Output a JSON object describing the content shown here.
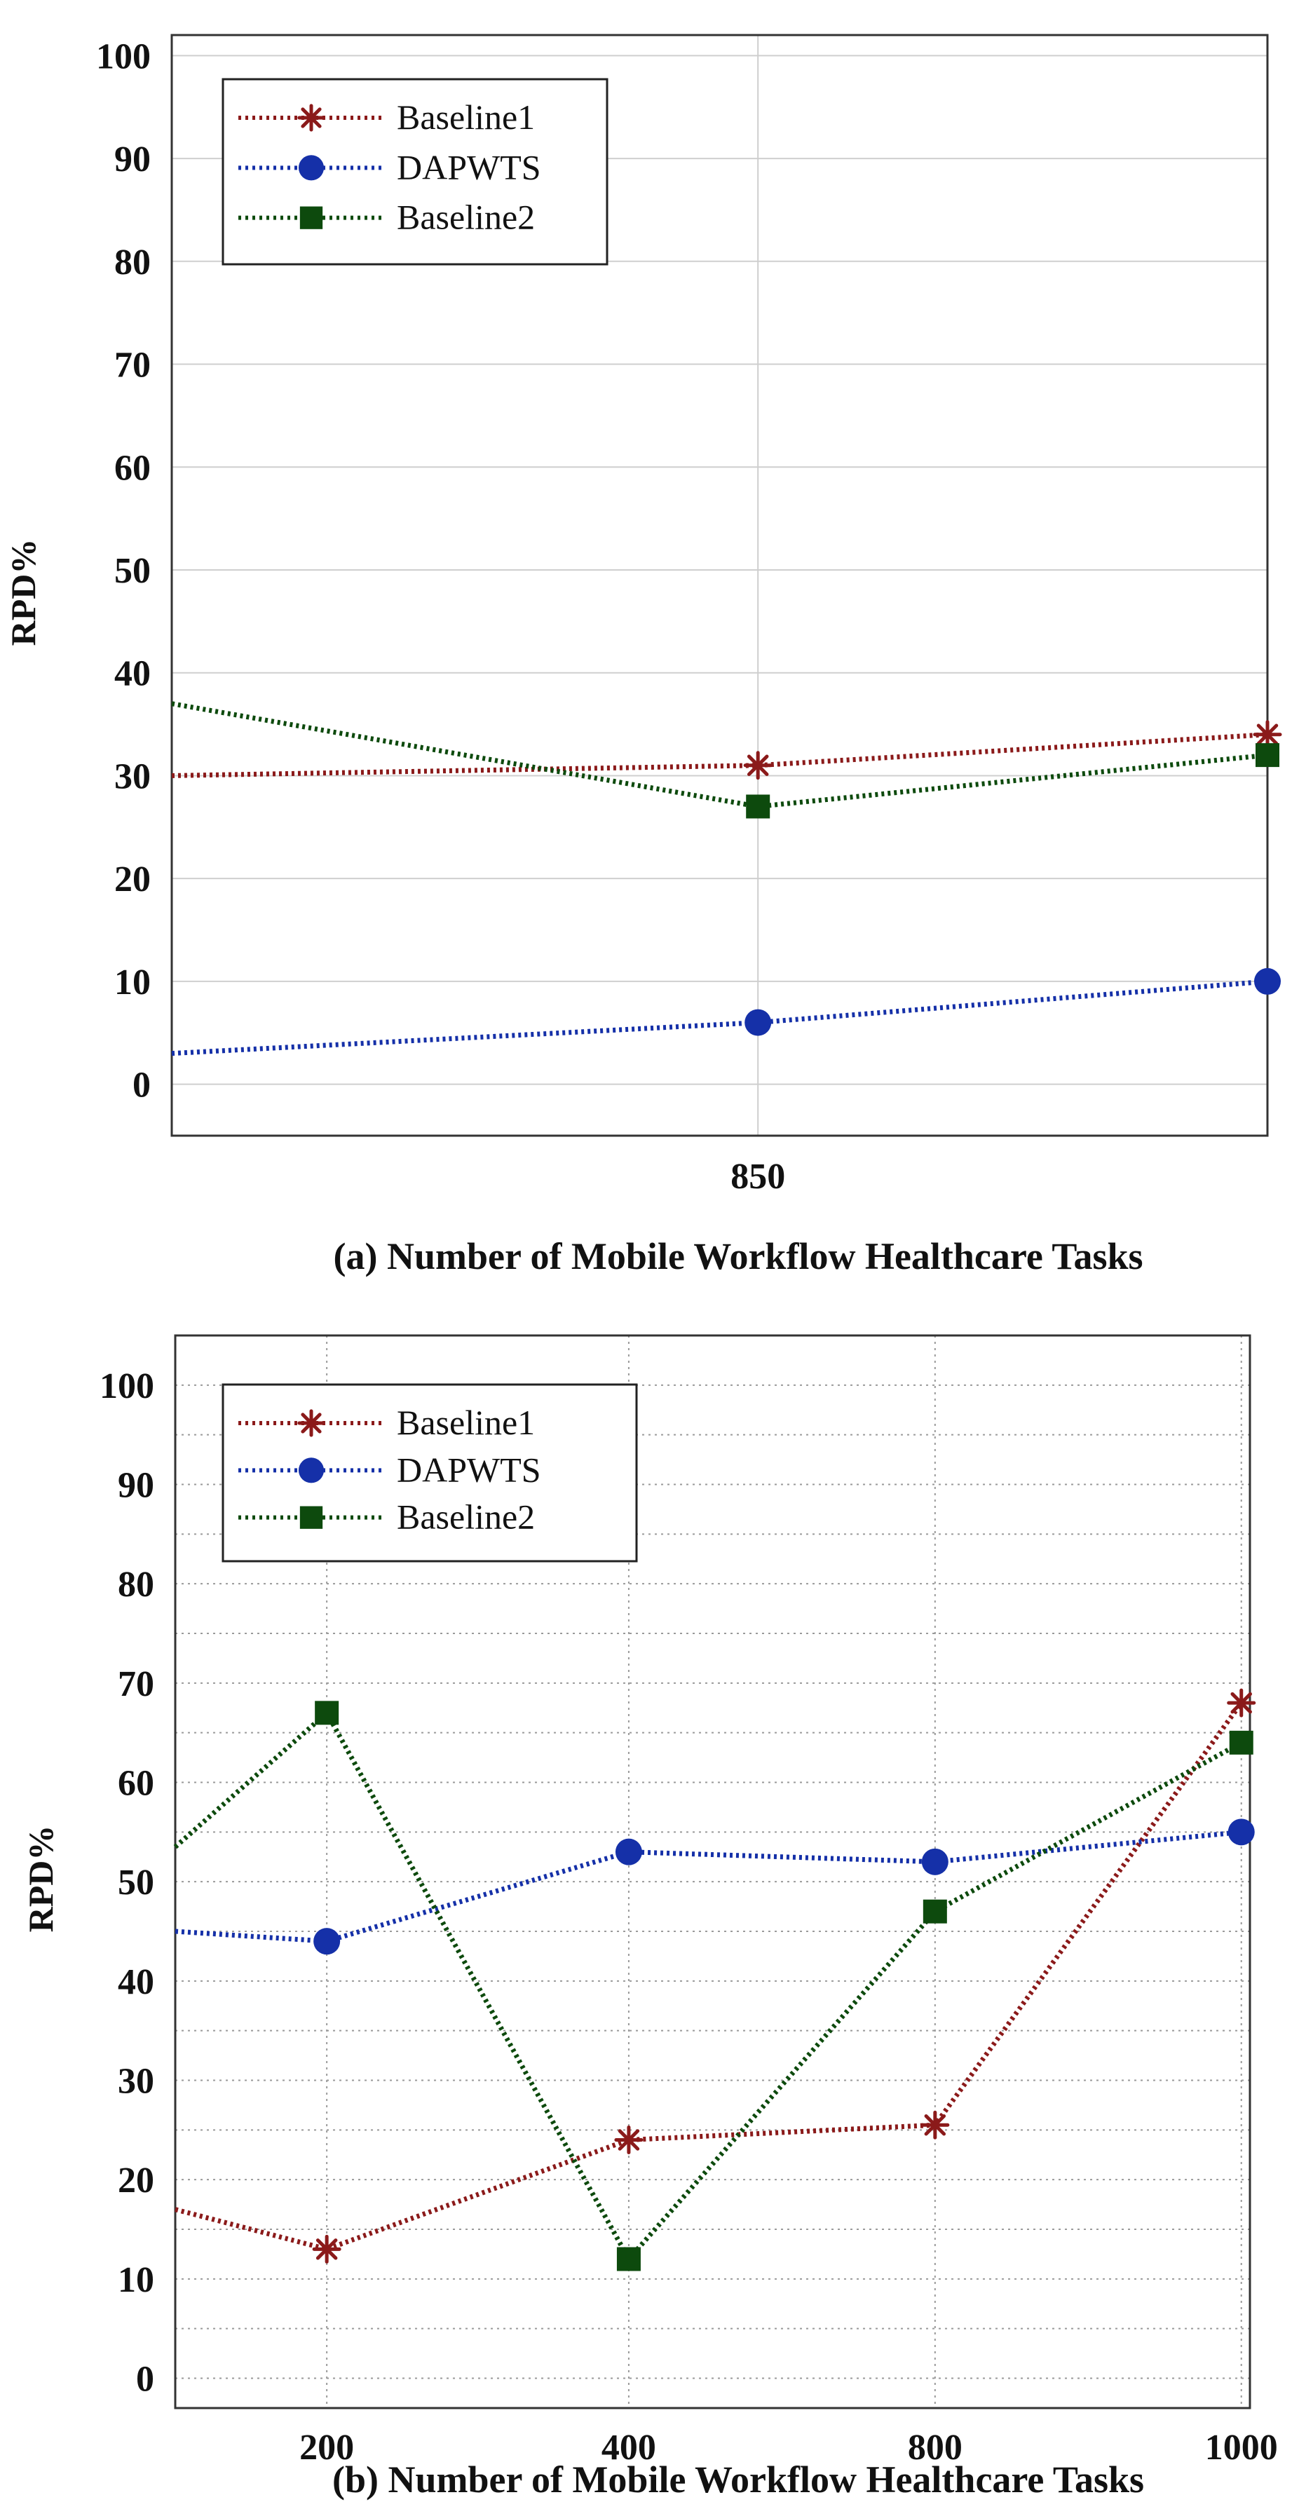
{
  "colors": {
    "baseline1": "#8b1a1a",
    "dapwts": "#1530a8",
    "baseline2": "#0d4a0d"
  },
  "chart_data": [
    {
      "type": "line",
      "caption": "(a) Number of Mobile Workflow Healthcare Tasks",
      "ylabel": "RPD%",
      "ylim": [
        -5,
        102
      ],
      "yticks": [
        "0",
        "10",
        "20",
        "30",
        "40",
        "50",
        "60",
        "70",
        "80",
        "90",
        "100"
      ],
      "xlim": [
        0,
        1
      ],
      "xticks": [
        {
          "x": 0.535,
          "label": "850"
        }
      ],
      "legend": [
        "Baseline1",
        "DAPWTS",
        "Baseline2"
      ],
      "series": [
        {
          "name": "Baseline1",
          "x": [
            0,
            0.535,
            1
          ],
          "values": [
            30,
            31,
            34
          ]
        },
        {
          "name": "DAPWTS",
          "x": [
            0,
            0.535,
            1
          ],
          "values": [
            3,
            6,
            10
          ]
        },
        {
          "name": "Baseline2",
          "x": [
            0,
            0.535,
            1
          ],
          "values": [
            37,
            27,
            32
          ]
        }
      ]
    },
    {
      "type": "line",
      "caption": "(b) Number of Mobile Workflow Healthcare Tasks",
      "ylabel": "RPD%",
      "ylim": [
        -3,
        105
      ],
      "yticks": [
        "0",
        "10",
        "20",
        "30",
        "40",
        "50",
        "60",
        "70",
        "80",
        "90",
        "100"
      ],
      "xlim": [
        0,
        1
      ],
      "xticks": [
        {
          "x": 0.141,
          "label": "200"
        },
        {
          "x": 0.422,
          "label": "400"
        },
        {
          "x": 0.707,
          "label": "800"
        },
        {
          "x": 0.992,
          "label": "1000"
        }
      ],
      "legend": [
        "Baseline1",
        "DAPWTS",
        "Baseline2"
      ],
      "series": [
        {
          "name": "Baseline1",
          "x": [
            0,
            0.141,
            0.422,
            0.707,
            0.992
          ],
          "values": [
            17,
            13,
            24,
            25.5,
            68
          ]
        },
        {
          "name": "DAPWTS",
          "x": [
            0,
            0.141,
            0.422,
            0.707,
            0.992
          ],
          "values": [
            45,
            44,
            53,
            52,
            55
          ]
        },
        {
          "name": "Baseline2",
          "x": [
            0,
            0.141,
            0.422,
            0.707,
            0.992
          ],
          "values": [
            53.5,
            67,
            12,
            47,
            64
          ]
        }
      ]
    }
  ]
}
